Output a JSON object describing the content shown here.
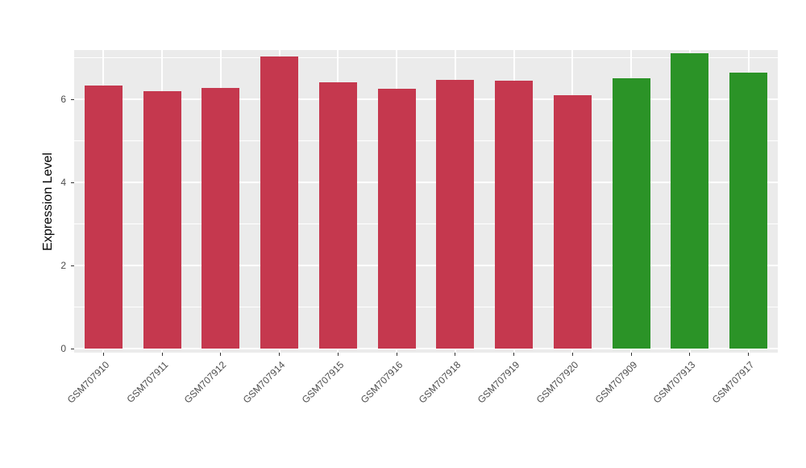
{
  "chart_data": {
    "type": "bar",
    "title": "",
    "ylabel": "Expression Level",
    "xlabel": "",
    "ylim": [
      0,
      7.2
    ],
    "yticks": [
      0,
      2,
      4,
      6
    ],
    "yticks_minor": [
      1,
      3,
      5,
      7
    ],
    "grid": true,
    "legend": "none",
    "panel_bg": "#EBEBEB",
    "grid_color": "#FFFFFF",
    "tick_color": "#333333",
    "tick_label_color": "#4D4D4D",
    "categories": [
      "GSM707910",
      "GSM707911",
      "GSM707912",
      "GSM707914",
      "GSM707915",
      "GSM707916",
      "GSM707918",
      "GSM707919",
      "GSM707920",
      "GSM707909",
      "GSM707913",
      "GSM707917"
    ],
    "values": [
      6.33,
      6.2,
      6.27,
      7.02,
      6.4,
      6.25,
      6.47,
      6.44,
      6.1,
      6.5,
      7.1,
      6.65
    ],
    "colors": [
      "#C5384E",
      "#C5384E",
      "#C5384E",
      "#C5384E",
      "#C5384E",
      "#C5384E",
      "#C5384E",
      "#C5384E",
      "#C5384E",
      "#2B9327",
      "#2B9327",
      "#2B9327"
    ]
  }
}
